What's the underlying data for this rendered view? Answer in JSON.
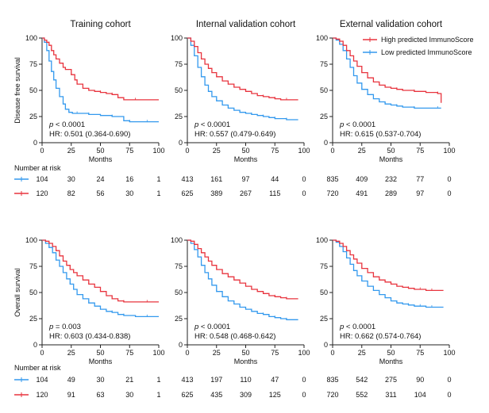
{
  "colors": {
    "low": "#3399ee",
    "high": "#e8343e",
    "axis": "#222222"
  },
  "legend": {
    "high_label": "High predicted ImmunoScore",
    "low_label": "Low predicted ImmunoScore"
  },
  "risk_title": "Number at risk",
  "chart_data": [
    {
      "type": "line",
      "subtype": "kaplan-meier",
      "title": "Training cohort",
      "ylabel": "Disease free survival",
      "xlabel": "Months",
      "xlim": [
        0,
        100
      ],
      "ylim": [
        0,
        100
      ],
      "xticks": [
        "0",
        "25",
        "50",
        "75",
        "100"
      ],
      "yticks": [
        "0",
        "25",
        "50",
        "75",
        "100"
      ],
      "p_text": "< 0.0001",
      "hr_text": "HR: 0.501 (0.364-0.690)",
      "series": [
        {
          "name": "Low predicted ImmunoScore",
          "color_key": "low",
          "x": [
            0,
            2,
            4,
            6,
            8,
            10,
            12,
            15,
            18,
            20,
            23,
            26,
            30,
            35,
            40,
            50,
            60,
            70,
            75,
            80,
            90,
            100
          ],
          "y": [
            100,
            96,
            88,
            78,
            68,
            60,
            52,
            44,
            37,
            32,
            29,
            28,
            28,
            28,
            27,
            26,
            25,
            21,
            20,
            20,
            20,
            20
          ]
        },
        {
          "name": "High predicted ImmunoScore",
          "color_key": "high",
          "x": [
            0,
            2,
            4,
            6,
            8,
            10,
            12,
            15,
            18,
            20,
            25,
            28,
            30,
            35,
            40,
            45,
            50,
            55,
            60,
            65,
            70,
            75,
            80,
            90,
            100
          ],
          "y": [
            100,
            98,
            96,
            93,
            88,
            84,
            80,
            76,
            72,
            70,
            65,
            60,
            56,
            52,
            50,
            49,
            48,
            47,
            46,
            43,
            41,
            41,
            41,
            41,
            41
          ]
        }
      ],
      "risk": {
        "low": [
          "104",
          "30",
          "24",
          "16",
          "1"
        ],
        "high": [
          "120",
          "82",
          "56",
          "30",
          "1"
        ]
      }
    },
    {
      "type": "line",
      "subtype": "kaplan-meier",
      "title": "Internal validation cohort",
      "ylabel": "",
      "xlabel": "Months",
      "xlim": [
        0,
        100
      ],
      "ylim": [
        0,
        100
      ],
      "xticks": [
        "0",
        "25",
        "50",
        "75",
        "100"
      ],
      "yticks": [
        "0",
        "25",
        "50",
        "75",
        "100"
      ],
      "p_text": "< 0.0001",
      "hr_text": "HR: 0.557 (0.479-0.649)",
      "series": [
        {
          "name": "Low predicted ImmunoScore",
          "color_key": "low",
          "x": [
            0,
            3,
            6,
            9,
            12,
            15,
            18,
            21,
            25,
            30,
            35,
            40,
            45,
            50,
            55,
            60,
            65,
            70,
            75,
            80,
            85,
            90,
            95
          ],
          "y": [
            100,
            93,
            83,
            72,
            63,
            55,
            49,
            44,
            40,
            36,
            33,
            31,
            29,
            28,
            27,
            26,
            25,
            24,
            23,
            23,
            22,
            22,
            22
          ]
        },
        {
          "name": "High predicted ImmunoScore",
          "color_key": "high",
          "x": [
            0,
            3,
            6,
            9,
            12,
            15,
            18,
            21,
            25,
            30,
            35,
            40,
            45,
            50,
            55,
            60,
            65,
            70,
            75,
            80,
            85,
            90,
            95
          ],
          "y": [
            100,
            97,
            92,
            86,
            80,
            75,
            71,
            67,
            63,
            59,
            56,
            53,
            51,
            49,
            47,
            45,
            44,
            43,
            42,
            41,
            41,
            41,
            41
          ]
        }
      ],
      "risk": {
        "low": [
          "413",
          "161",
          "97",
          "44",
          "0"
        ],
        "high": [
          "625",
          "389",
          "267",
          "115",
          "0"
        ]
      }
    },
    {
      "type": "line",
      "subtype": "kaplan-meier",
      "title": "External validation cohort",
      "ylabel": "",
      "xlabel": "Months",
      "xlim": [
        0,
        100
      ],
      "ylim": [
        0,
        100
      ],
      "xticks": [
        "0",
        "25",
        "50",
        "75",
        "100"
      ],
      "yticks": [
        "0",
        "25",
        "50",
        "75",
        "100"
      ],
      "p_text": "< 0.0001",
      "hr_text": "HR: 0.615 (0.537-0.704)",
      "legend": true,
      "series": [
        {
          "name": "Low predicted ImmunoScore",
          "color_key": "low",
          "x": [
            0,
            3,
            6,
            9,
            12,
            15,
            18,
            21,
            25,
            30,
            35,
            40,
            45,
            50,
            55,
            60,
            70,
            80,
            90,
            93
          ],
          "y": [
            100,
            98,
            94,
            88,
            80,
            72,
            64,
            57,
            51,
            46,
            42,
            39,
            37,
            36,
            35,
            34,
            33,
            33,
            33,
            33
          ]
        },
        {
          "name": "High predicted ImmunoScore",
          "color_key": "high",
          "x": [
            0,
            3,
            6,
            9,
            12,
            15,
            18,
            21,
            25,
            30,
            35,
            40,
            45,
            50,
            55,
            60,
            70,
            80,
            90,
            93,
            93
          ],
          "y": [
            100,
            99,
            97,
            93,
            88,
            83,
            78,
            73,
            67,
            62,
            58,
            55,
            53,
            52,
            51,
            50,
            49,
            48,
            47,
            47,
            38
          ]
        }
      ],
      "risk": {
        "low": [
          "835",
          "409",
          "232",
          "77",
          "0"
        ],
        "high": [
          "720",
          "491",
          "289",
          "97",
          "0"
        ]
      }
    },
    {
      "type": "line",
      "subtype": "kaplan-meier",
      "title": "",
      "ylabel": "Overall survival",
      "xlabel": "Months",
      "xlim": [
        0,
        100
      ],
      "ylim": [
        0,
        100
      ],
      "xticks": [
        "0",
        "25",
        "50",
        "75",
        "100"
      ],
      "yticks": [
        "0",
        "25",
        "50",
        "75",
        "100"
      ],
      "p_text": "= 0.003",
      "hr_text": "HR: 0.603 (0.434-0.838)",
      "series": [
        {
          "name": "Low predicted ImmunoScore",
          "color_key": "low",
          "x": [
            0,
            3,
            6,
            9,
            12,
            15,
            18,
            21,
            24,
            27,
            30,
            35,
            40,
            45,
            50,
            55,
            60,
            65,
            70,
            80,
            90,
            100
          ],
          "y": [
            100,
            97,
            93,
            88,
            81,
            75,
            69,
            63,
            58,
            53,
            48,
            44,
            40,
            37,
            34,
            32,
            31,
            29,
            28,
            27,
            27,
            27
          ]
        },
        {
          "name": "High predicted ImmunoScore",
          "color_key": "high",
          "x": [
            0,
            3,
            6,
            9,
            12,
            15,
            18,
            21,
            24,
            27,
            30,
            35,
            40,
            45,
            50,
            55,
            60,
            65,
            70,
            80,
            90,
            100
          ],
          "y": [
            100,
            99,
            97,
            94,
            90,
            85,
            80,
            76,
            72,
            69,
            66,
            62,
            58,
            55,
            51,
            47,
            44,
            42,
            41,
            41,
            41,
            41
          ]
        }
      ],
      "risk": {
        "low": [
          "104",
          "49",
          "30",
          "21",
          "1"
        ],
        "high": [
          "120",
          "91",
          "63",
          "30",
          "1"
        ]
      }
    },
    {
      "type": "line",
      "subtype": "kaplan-meier",
      "title": "",
      "ylabel": "",
      "xlabel": "Months",
      "xlim": [
        0,
        100
      ],
      "ylim": [
        0,
        100
      ],
      "xticks": [
        "0",
        "25",
        "50",
        "75",
        "100"
      ],
      "yticks": [
        "0",
        "25",
        "50",
        "75",
        "100"
      ],
      "p_text": "< 0.0001",
      "hr_text": "HR: 0.548 (0.468-0.642)",
      "series": [
        {
          "name": "Low predicted ImmunoScore",
          "color_key": "low",
          "x": [
            0,
            3,
            6,
            9,
            12,
            15,
            18,
            21,
            25,
            30,
            35,
            40,
            45,
            50,
            55,
            60,
            65,
            70,
            75,
            80,
            85,
            90,
            95
          ],
          "y": [
            100,
            97,
            91,
            84,
            76,
            69,
            63,
            57,
            51,
            46,
            42,
            39,
            36,
            34,
            32,
            30,
            29,
            27,
            26,
            25,
            24,
            24,
            24
          ]
        },
        {
          "name": "High predicted ImmunoScore",
          "color_key": "high",
          "x": [
            0,
            3,
            6,
            9,
            12,
            15,
            18,
            21,
            25,
            30,
            35,
            40,
            45,
            50,
            55,
            60,
            65,
            70,
            75,
            80,
            85,
            90,
            95
          ],
          "y": [
            100,
            99,
            96,
            92,
            88,
            84,
            80,
            76,
            72,
            68,
            65,
            62,
            59,
            56,
            53,
            51,
            49,
            47,
            46,
            45,
            44,
            44,
            44
          ]
        }
      ],
      "risk": {
        "low": [
          "413",
          "197",
          "110",
          "47",
          "0"
        ],
        "high": [
          "625",
          "435",
          "309",
          "125",
          "0"
        ]
      }
    },
    {
      "type": "line",
      "subtype": "kaplan-meier",
      "title": "",
      "ylabel": "",
      "xlabel": "Months",
      "xlim": [
        0,
        100
      ],
      "ylim": [
        0,
        100
      ],
      "xticks": [
        "0",
        "25",
        "50",
        "75",
        "100"
      ],
      "yticks": [
        "0",
        "25",
        "50",
        "75",
        "100"
      ],
      "p_text": "< 0.0001",
      "hr_text": "HR: 0.662 (0.574-0.764)",
      "series": [
        {
          "name": "Low predicted ImmunoScore",
          "color_key": "low",
          "x": [
            0,
            3,
            6,
            9,
            12,
            15,
            18,
            21,
            25,
            30,
            35,
            40,
            45,
            50,
            55,
            60,
            65,
            70,
            75,
            80,
            85,
            90,
            95
          ],
          "y": [
            100,
            98,
            94,
            89,
            83,
            77,
            71,
            66,
            61,
            56,
            52,
            48,
            45,
            42,
            40,
            39,
            38,
            37,
            37,
            36,
            36,
            36,
            36
          ]
        },
        {
          "name": "High predicted ImmunoScore",
          "color_key": "high",
          "x": [
            0,
            3,
            6,
            9,
            12,
            15,
            18,
            21,
            25,
            30,
            35,
            40,
            45,
            50,
            55,
            60,
            65,
            70,
            75,
            80,
            85,
            90,
            95
          ],
          "y": [
            100,
            99,
            97,
            94,
            90,
            86,
            82,
            78,
            73,
            69,
            65,
            62,
            60,
            58,
            56,
            55,
            54,
            53,
            53,
            52,
            52,
            52,
            52
          ]
        }
      ],
      "risk": {
        "low": [
          "835",
          "542",
          "275",
          "90",
          "0"
        ],
        "high": [
          "720",
          "552",
          "311",
          "104",
          "0"
        ]
      }
    }
  ]
}
